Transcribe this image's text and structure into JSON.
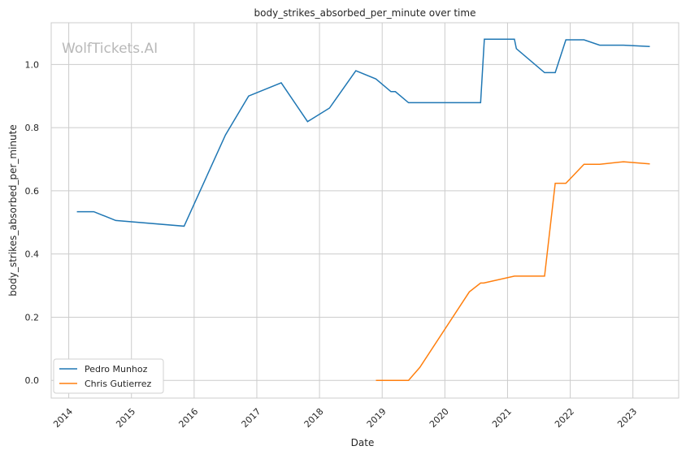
{
  "chart_data": {
    "type": "line",
    "title": "body_strikes_absorbed_per_minute over time",
    "xlabel": "Date",
    "ylabel": "body_strikes_absorbed_per_minute",
    "watermark": "WolfTickets.AI",
    "xlim": [
      2013.72,
      2023.73
    ],
    "ylim": [
      -0.056,
      1.132
    ],
    "xticks": [
      2014,
      2015,
      2016,
      2017,
      2018,
      2019,
      2020,
      2021,
      2022,
      2023
    ],
    "yticks": [
      0.0,
      0.2,
      0.4,
      0.6,
      0.8,
      1.0
    ],
    "grid": true,
    "legend_position": "lower-left",
    "series": [
      {
        "name": "Pedro Munhoz",
        "color": "#1f77b4",
        "points": [
          [
            2014.13,
            0.534
          ],
          [
            2014.4,
            0.534
          ],
          [
            2014.75,
            0.506
          ],
          [
            2015.84,
            0.488
          ],
          [
            2016.5,
            0.777
          ],
          [
            2016.87,
            0.9
          ],
          [
            2017.39,
            0.942
          ],
          [
            2017.81,
            0.819
          ],
          [
            2018.16,
            0.862
          ],
          [
            2018.58,
            0.98
          ],
          [
            2018.9,
            0.954
          ],
          [
            2019.14,
            0.914
          ],
          [
            2019.21,
            0.914
          ],
          [
            2019.42,
            0.879
          ],
          [
            2020.57,
            0.879
          ],
          [
            2020.63,
            1.08
          ],
          [
            2021.11,
            1.08
          ],
          [
            2021.14,
            1.05
          ],
          [
            2021.59,
            0.974
          ],
          [
            2021.76,
            0.974
          ],
          [
            2021.93,
            1.078
          ],
          [
            2022.22,
            1.078
          ],
          [
            2022.47,
            1.061
          ],
          [
            2022.85,
            1.061
          ],
          [
            2023.27,
            1.057
          ]
        ]
      },
      {
        "name": "Chris Gutierrez",
        "color": "#ff7f0e",
        "points": [
          [
            2018.9,
            0.0
          ],
          [
            2019.42,
            0.0
          ],
          [
            2019.6,
            0.041
          ],
          [
            2020.39,
            0.28
          ],
          [
            2020.57,
            0.308
          ],
          [
            2020.62,
            0.308
          ],
          [
            2021.11,
            0.33
          ],
          [
            2021.59,
            0.33
          ],
          [
            2021.76,
            0.624
          ],
          [
            2021.93,
            0.624
          ],
          [
            2022.22,
            0.684
          ],
          [
            2022.47,
            0.684
          ],
          [
            2022.85,
            0.692
          ],
          [
            2023.27,
            0.685
          ]
        ]
      }
    ]
  }
}
